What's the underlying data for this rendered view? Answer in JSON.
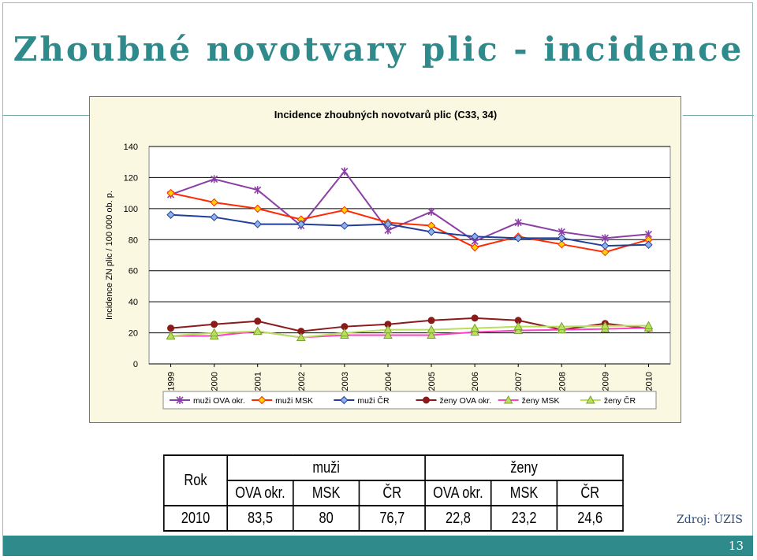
{
  "slide": {
    "title": "Zhoubné novotvary plic - incidence",
    "source": "Zdroj: ÚZIS",
    "page_number": "13"
  },
  "colors": {
    "accent": "#2f8a8c",
    "chart_bg": "#fbf8e1"
  },
  "chart_data": {
    "type": "line",
    "title": "Incidence zhoubných novotvarů plic (C33, 34)",
    "ylabel": "Incidence ZN plic / 100 000 ob. p.",
    "xlabel": "",
    "ylim": [
      0,
      140
    ],
    "yticks": [
      "0",
      "20",
      "40",
      "60",
      "80",
      "100",
      "120",
      "140"
    ],
    "categories": [
      "1999",
      "2000",
      "2001",
      "2002",
      "2003",
      "2004",
      "2005",
      "2006",
      "2007",
      "2008",
      "2009",
      "2010"
    ],
    "grid": true,
    "legend_position": "bottom",
    "series": [
      {
        "name": "muži OVA okr.",
        "color": "#8b3fa6",
        "marker": "star",
        "values": [
          109,
          119,
          112,
          89,
          124,
          86,
          98,
          79,
          91,
          85,
          81,
          83.5
        ]
      },
      {
        "name": "muži MSK",
        "color": "#ff2a00",
        "marker": "diamond-yellow",
        "values": [
          110,
          104,
          100,
          93,
          99,
          91,
          89,
          75,
          82,
          77,
          72,
          80
        ]
      },
      {
        "name": "muži ČR",
        "color": "#1f3f9a",
        "marker": "diamond",
        "values": [
          96,
          94.5,
          90,
          90,
          89,
          90,
          85,
          82,
          81,
          81,
          76,
          76.7
        ]
      },
      {
        "name": "ženy OVA okr.",
        "color": "#8b1a1a",
        "marker": "circle",
        "values": [
          23,
          25.5,
          27.5,
          21,
          24,
          25.5,
          28,
          29.5,
          28,
          22,
          26,
          22.8
        ]
      },
      {
        "name": "ženy MSK",
        "color": "#ff40c0",
        "marker": "triangle",
        "values": [
          18,
          18,
          21,
          17,
          18.5,
          18.5,
          18.5,
          20.5,
          21.5,
          22,
          22.5,
          23.2
        ]
      },
      {
        "name": "ženy ČR",
        "color": "#b8e05a",
        "marker": "triangle",
        "values": [
          18,
          20,
          21,
          17,
          20,
          22,
          22,
          23,
          24,
          24,
          24.5,
          24.6
        ]
      }
    ]
  },
  "table": {
    "rok_header": "Rok",
    "muzi_header": "muži",
    "zeny_header": "ženy",
    "sub_headers": [
      "OVA okr.",
      "MSK",
      "ČR",
      "OVA okr.",
      "MSK",
      "ČR"
    ],
    "row": {
      "year": "2010",
      "values": [
        "83,5",
        "80",
        "76,7",
        "22,8",
        "23,2",
        "24,6"
      ]
    }
  }
}
